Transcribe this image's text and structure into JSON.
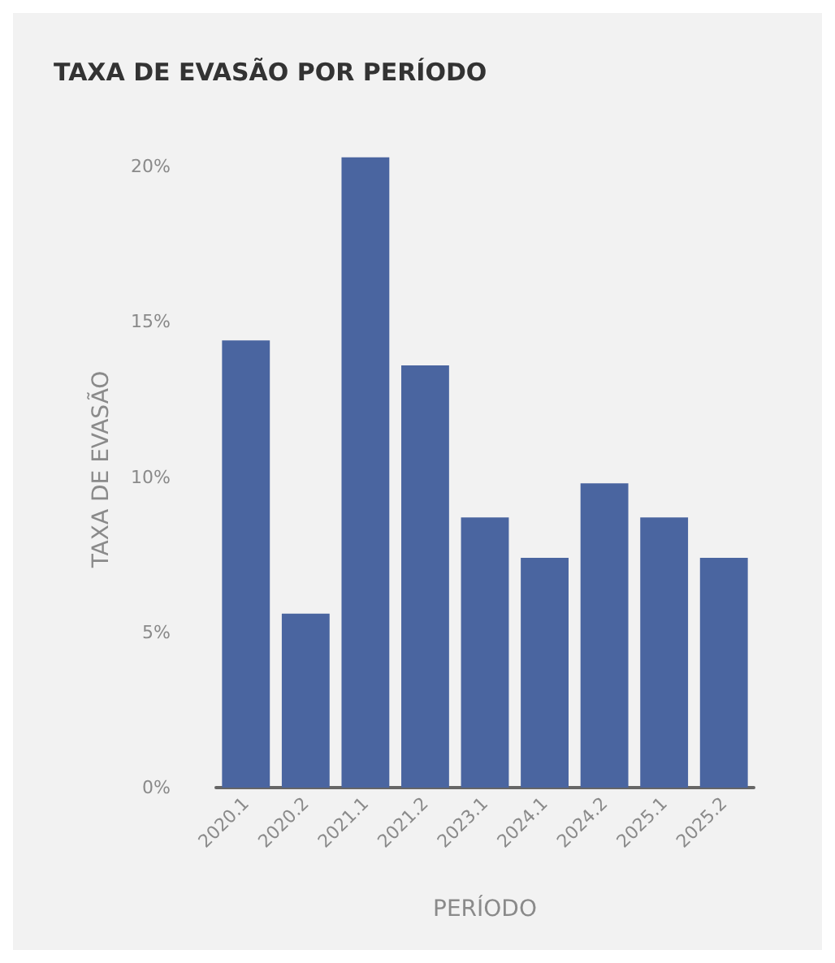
{
  "chart_data": {
    "type": "bar",
    "title": "TAXA DE EVASÃO POR PERÍODO",
    "xlabel": "PERÍODO",
    "ylabel": "TAXA DE EVASÃO",
    "categories": [
      "2020.1",
      "2020.2",
      "2021.1",
      "2021.2",
      "2023.1",
      "2024.1",
      "2024.2",
      "2025.1",
      "2025.2"
    ],
    "values": [
      14.4,
      5.6,
      20.3,
      13.6,
      8.7,
      7.4,
      9.8,
      8.7,
      7.4
    ],
    "color": "#4a65a0",
    "ylim": [
      0,
      20.5
    ],
    "yticks": [
      {
        "value": 0,
        "label": "0%"
      },
      {
        "value": 5,
        "label": "5%"
      },
      {
        "value": 10,
        "label": "10%"
      },
      {
        "value": 15,
        "label": "15%"
      },
      {
        "value": 20,
        "label": "20%"
      }
    ],
    "grid": false
  }
}
